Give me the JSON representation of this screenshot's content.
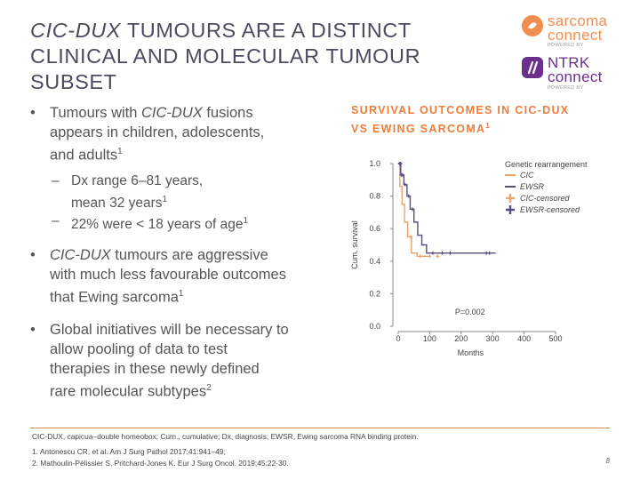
{
  "slide": {
    "title_italic": "CIC-DUX",
    "title_rest_line1": " TUMOURS ARE A DISTINCT",
    "title_line2": "CLINICAL AND MOLECULAR TUMOUR",
    "title_line3": "SUBSET",
    "page_number": "8"
  },
  "logos": {
    "logo1_word1": "sarcoma",
    "logo1_word2": "connect",
    "logo1_powered": "POWERED BY",
    "logo2_word1": "NTRK",
    "logo2_word2": "connect",
    "logo2_powered": "POWERED BY"
  },
  "bullets": [
    {
      "pre": "Tumours with ",
      "italic": "CIC-DUX",
      "post": " fusions",
      "line2": "appears in children, adolescents,",
      "line3": "and adults",
      "sup": "1"
    },
    {
      "italic": "CIC-DUX",
      "post": " tumours are aggressive",
      "line2": "with much less favourable outcomes",
      "line3": "that Ewing sarcoma",
      "sup": "1"
    },
    {
      "line1": "Global initiatives will be necessary to",
      "line2": "allow pooling of data to test",
      "line3": "therapies in these newly defined",
      "line4": "rare molecular subtypes",
      "sup": "2"
    }
  ],
  "subbullets": [
    {
      "line1": "Dx range 6–81 years,",
      "line2": "mean 32 years",
      "sup": "1"
    },
    {
      "line1": "22% were < 18 years of age",
      "sup": "1"
    }
  ],
  "chart_title_line1": "SURVIVAL OUTCOMES IN CIC-DUX",
  "chart_title_line2": "VS EWING SARCOMA",
  "chart_title_sup": "1",
  "chart_data": {
    "type": "line",
    "title": "",
    "xlabel": "Months",
    "ylabel": "Cum. survival",
    "xlim": [
      0,
      500
    ],
    "ylim": [
      0,
      1.0
    ],
    "x_ticks": [
      "0",
      "100",
      "200",
      "300",
      "400",
      "500"
    ],
    "y_ticks": [
      "0.0",
      "0.2",
      "0.4",
      "0.6",
      "0.8",
      "1.0"
    ],
    "annotation": "P=0.002",
    "legend_title": "Genetic rearrangement",
    "legend": [
      "CIC",
      "EWSR",
      "CIC-censored",
      "EWSR-censored"
    ],
    "series": [
      {
        "name": "CIC",
        "color": "#e9a46a",
        "x": [
          0,
          5,
          5,
          12,
          12,
          20,
          20,
          30,
          30,
          42,
          42,
          60,
          60,
          95
        ],
        "y": [
          1.0,
          1.0,
          0.86,
          0.86,
          0.75,
          0.75,
          0.64,
          0.64,
          0.55,
          0.55,
          0.45,
          0.45,
          0.43,
          0.43
        ]
      },
      {
        "name": "EWSR",
        "color": "#5a4e7e",
        "x": [
          0,
          8,
          8,
          18,
          18,
          28,
          28,
          38,
          38,
          50,
          50,
          62,
          62,
          75,
          75,
          90,
          90,
          310
        ],
        "y": [
          1.0,
          1.0,
          0.93,
          0.93,
          0.87,
          0.87,
          0.8,
          0.8,
          0.72,
          0.72,
          0.64,
          0.64,
          0.56,
          0.56,
          0.5,
          0.5,
          0.45,
          0.45
        ]
      }
    ],
    "censored_cic_x": [
      40,
      70,
      100,
      125
    ],
    "censored_ewsr_x": [
      5,
      5,
      6,
      7,
      10,
      14,
      22,
      33,
      45,
      110,
      140,
      165,
      280,
      290
    ]
  },
  "colors": {
    "title": "#4b4b60",
    "accent_orange": "#ee7d3a",
    "cic": "#e9a46a",
    "ewsr": "#5a4e7e"
  },
  "footnotes": {
    "abbrev": "CIC-DUX, capicua–double homeobox; Cum., cumulative; Dx, diagnosis; EWSR, Ewing sarcoma RNA binding protein.",
    "ref1": "1. Antonescu CR, et al. Am J Surg Pathol 2017;41:941–49;",
    "ref2": "2. Mathoulin-Pélissier S, Pritchard-Jones K. Eur J Surg Oncol. 2019;45:22-30."
  }
}
